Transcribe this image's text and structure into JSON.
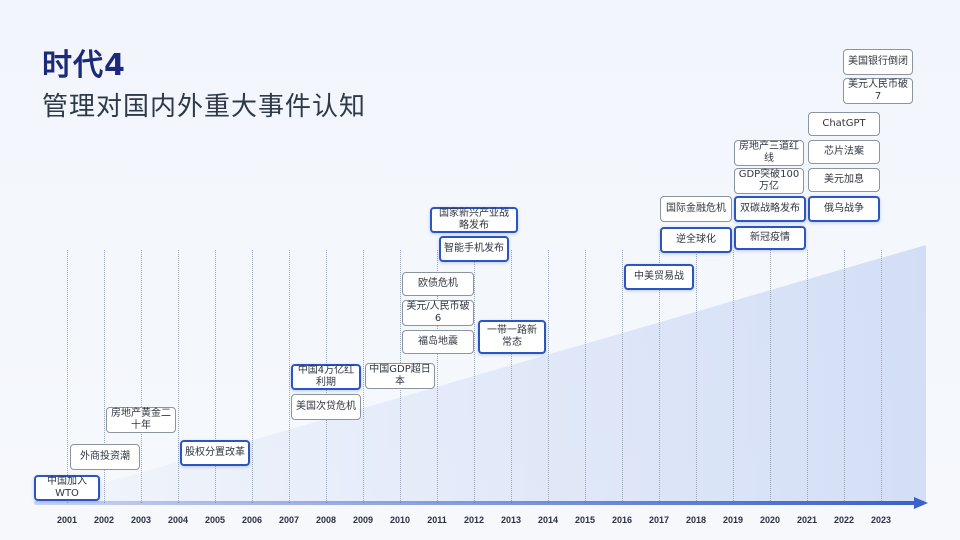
{
  "title": "时代4",
  "subtitle": "管理对国内外重大事件认知",
  "years": [
    "2001",
    "2002",
    "2003",
    "2004",
    "2005",
    "2006",
    "2007",
    "2008",
    "2009",
    "2010",
    "2011",
    "2012",
    "2013",
    "2014",
    "2015",
    "2016",
    "2017",
    "2018",
    "2019",
    "2020",
    "2021",
    "2022",
    "2023"
  ],
  "events": [
    {
      "id": "ev1",
      "label": "中国加入WTO",
      "style": "blue"
    },
    {
      "id": "ev2",
      "label": "外商投资潮",
      "style": "gray"
    },
    {
      "id": "ev3",
      "label": "房地产黄金二十年",
      "style": "gray"
    },
    {
      "id": "ev4",
      "label": "股权分置改革",
      "style": "blue"
    },
    {
      "id": "ev5",
      "label": "中国4万亿红利期",
      "style": "blue"
    },
    {
      "id": "ev6",
      "label": "美国次贷危机",
      "style": "gray"
    },
    {
      "id": "ev7",
      "label": "中国GDP超日本",
      "style": "gray"
    },
    {
      "id": "ev8",
      "label": "欧债危机",
      "style": "gray"
    },
    {
      "id": "ev9",
      "label": "美元/人民币破6",
      "style": "gray"
    },
    {
      "id": "ev10",
      "label": "福岛地震",
      "style": "gray"
    },
    {
      "id": "ev11",
      "label": "国家新兴产业战略发布",
      "style": "blue"
    },
    {
      "id": "ev12",
      "label": "智能手机发布",
      "style": "blue"
    },
    {
      "id": "ev13",
      "label": "一带一路新常态",
      "style": "blue"
    },
    {
      "id": "ev14",
      "label": "中美贸易战",
      "style": "blue"
    },
    {
      "id": "ev15",
      "label": "国际金融危机",
      "style": "gray"
    },
    {
      "id": "ev16",
      "label": "逆全球化",
      "style": "blue"
    },
    {
      "id": "ev17",
      "label": "房地产三道红线",
      "style": "gray"
    },
    {
      "id": "ev18",
      "label": "GDP突破100万亿",
      "style": "gray"
    },
    {
      "id": "ev19",
      "label": "双碳战略发布",
      "style": "blue"
    },
    {
      "id": "ev20",
      "label": "新冠疫情",
      "style": "blue"
    },
    {
      "id": "ev21",
      "label": "ChatGPT",
      "style": "gray"
    },
    {
      "id": "ev22",
      "label": "芯片法案",
      "style": "gray"
    },
    {
      "id": "ev23",
      "label": "美元加息",
      "style": "gray"
    },
    {
      "id": "ev24",
      "label": "俄乌战争",
      "style": "blue"
    },
    {
      "id": "ev25",
      "label": "美国银行倒闭",
      "style": "gray"
    },
    {
      "id": "ev26",
      "label": "美元人民币破7",
      "style": "gray"
    }
  ]
}
